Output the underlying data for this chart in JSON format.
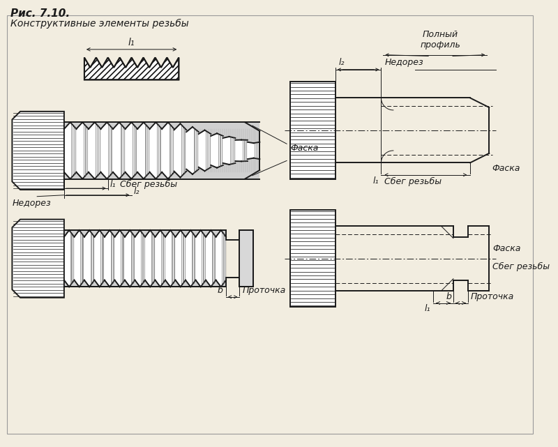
{
  "title_line1": "Рис. 7.10.",
  "title_line2": "Конструктивные элементы резьбы",
  "bg_color": "#f2ede0",
  "black": "#1a1a1a",
  "labels": {
    "nedorez": "Недорез",
    "sbeg": "Сбег резьбы",
    "faska": "Фаска",
    "protochka": "Проточка",
    "polnyi": "Полный\nпрофиль",
    "l1": "l₁",
    "l2": "l₂",
    "b": "b"
  },
  "figsize": [
    8.0,
    6.41
  ],
  "dpi": 100
}
